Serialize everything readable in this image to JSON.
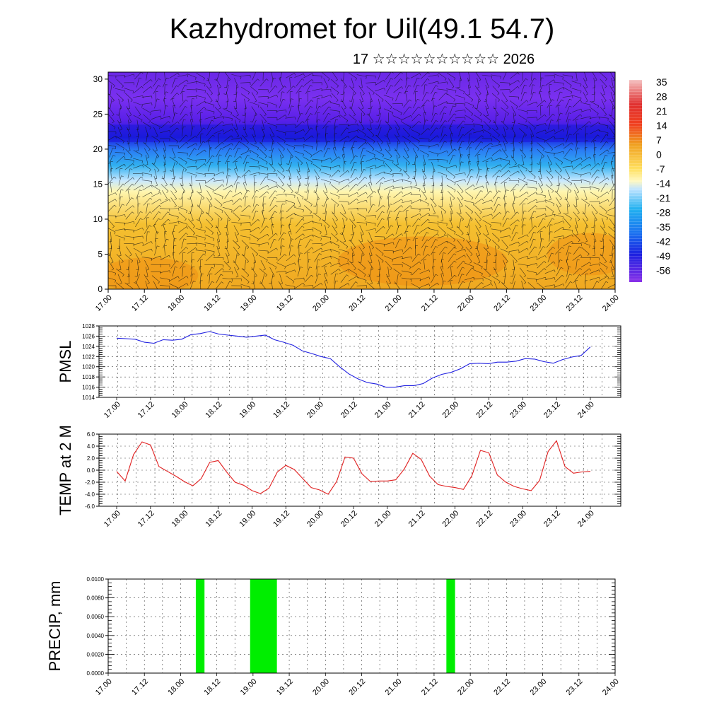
{
  "title": "Kazhydromet for Uil(49.1 54.7)",
  "subtitle": "17 ☆☆☆☆☆☆☆☆☆☆ 2026",
  "colors": {
    "pmsl_line": "#2020e0",
    "temp_line": "#e02020",
    "precip_bar": "#00ee00",
    "warm": "#f5a623",
    "cold": "#4b0ccc"
  },
  "chart_data": [
    {
      "type": "heatmap",
      "name": "vertical-profile",
      "ylabel": "",
      "ylim": [
        0,
        31
      ],
      "yticks": [
        "0",
        "5",
        "10",
        "15",
        "20",
        "25",
        "30"
      ],
      "xticks": [
        "17.00",
        "17.12",
        "18.00",
        "18.12",
        "19.00",
        "19.12",
        "20.00",
        "20.12",
        "21.00",
        "21.12",
        "22.00",
        "22.12",
        "23.00",
        "23.12",
        "24.00"
      ],
      "colorbar_labels": [
        "35",
        "28",
        "21",
        "14",
        "7",
        "0",
        "-7",
        "-14",
        "-21",
        "-28",
        "-35",
        "-42",
        "-49",
        "-56"
      ]
    },
    {
      "type": "line",
      "name": "pmsl",
      "ylabel": "PMSL",
      "ylim": [
        1014,
        1028
      ],
      "yticks": [
        "1014",
        "1016",
        "1018",
        "1020",
        "1022",
        "1024",
        "1026",
        "1028"
      ],
      "xticks": [
        "17.00",
        "17.12",
        "18.00",
        "18.12",
        "19.00",
        "19.12",
        "20.00",
        "20.12",
        "21.00",
        "21.12",
        "22.00",
        "22.12",
        "23.00",
        "23.12",
        "24.00"
      ],
      "series": [
        {
          "name": "PMSL",
          "values": [
            1025.6,
            1025.5,
            1025.4,
            1024.8,
            1024.6,
            1025.3,
            1025.2,
            1025.4,
            1026.3,
            1026.5,
            1026.9,
            1026.4,
            1026.2,
            1026.0,
            1025.8,
            1026.0,
            1026.2,
            1025.3,
            1024.8,
            1024.2,
            1023.1,
            1022.6,
            1022.0,
            1021.6,
            1020.0,
            1018.6,
            1017.6,
            1016.9,
            1016.6,
            1016.0,
            1016.0,
            1016.3,
            1016.3,
            1016.7,
            1017.8,
            1018.5,
            1018.9,
            1019.6,
            1020.6,
            1020.7,
            1020.6,
            1020.9,
            1020.9,
            1021.1,
            1021.6,
            1021.5,
            1021.0,
            1020.7,
            1021.4,
            1021.9,
            1022.2,
            1023.9
          ]
        }
      ]
    },
    {
      "type": "line",
      "name": "temp",
      "ylabel": "TEMP at 2 M",
      "ylim": [
        -6,
        6
      ],
      "yticks": [
        "-6.0",
        "-4.0",
        "-2.0",
        "0.0",
        "2.0",
        "4.0",
        "6.0"
      ],
      "xticks": [
        "17.00",
        "17.12",
        "18.00",
        "18.12",
        "19.00",
        "19.12",
        "20.00",
        "20.12",
        "21.00",
        "21.12",
        "22.00",
        "22.12",
        "23.00",
        "23.12",
        "24.00"
      ],
      "series": [
        {
          "name": "TEMP",
          "values": [
            -0.2,
            -1.8,
            2.6,
            4.7,
            4.2,
            0.6,
            -0.2,
            -1.0,
            -1.9,
            -2.6,
            -1.4,
            1.3,
            1.6,
            -0.3,
            -2.0,
            -2.5,
            -3.4,
            -3.9,
            -3.0,
            -0.3,
            0.8,
            0.1,
            -1.4,
            -2.9,
            -3.3,
            -4.0,
            -1.9,
            2.2,
            2.0,
            -0.6,
            -1.9,
            -1.8,
            -1.8,
            -1.6,
            0.2,
            2.8,
            1.8,
            -1.0,
            -2.4,
            -2.7,
            -2.9,
            -3.2,
            -0.9,
            3.3,
            2.9,
            -0.8,
            -2.0,
            -2.7,
            -3.1,
            -3.4,
            -1.7,
            3.1,
            4.9,
            0.6,
            -0.5,
            -0.3,
            -0.2
          ]
        }
      ]
    },
    {
      "type": "bar",
      "name": "precip",
      "ylabel": "PRECIP, mm",
      "ylim": [
        0,
        0.01
      ],
      "yticks": [
        "0.0000",
        "0.0020",
        "0.0040",
        "0.0060",
        "0.0080",
        "0.0100"
      ],
      "xticks": [
        "17.00",
        "17.12",
        "18.00",
        "18.12",
        "19.00",
        "19.12",
        "20.00",
        "20.12",
        "21.00",
        "21.12",
        "22.00",
        "22.12",
        "23.00",
        "23.12",
        "24.00"
      ],
      "bars": [
        {
          "start_day": 1.21,
          "end_day": 1.33,
          "value": 0.01
        },
        {
          "start_day": 1.96,
          "end_day": 2.33,
          "value": 0.01
        },
        {
          "start_day": 4.67,
          "end_day": 4.79,
          "value": 0.01
        }
      ]
    }
  ]
}
